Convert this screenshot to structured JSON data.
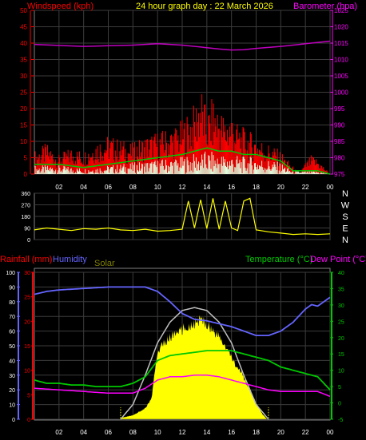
{
  "header": {
    "left_label": "Windspeed (kph)",
    "title": "24 hour graph day : 22 March 2026",
    "right_label": "Barometer (hpa)"
  },
  "colors": {
    "wind": "#ff0000",
    "gust": "#ff0000",
    "wind_avg": "#00c800",
    "wind_low": "#e0ffe0",
    "barometer": "#c000c0",
    "direction": "#ffff00",
    "humidity": "#6464ff",
    "solar": "#ffff00",
    "solar_max": "#c0c0c0",
    "temperature": "#00c800",
    "dewpoint": "#ff00ff",
    "rain": "#ff0000",
    "axis_red": "#ff0000",
    "axis_blue": "#6464ff",
    "axis_green": "#00c800",
    "axis_magenta": "#ff00ff"
  },
  "chart_data": [
    {
      "type": "line",
      "panel": "wind-barometer",
      "x_ticks": [
        "02",
        "04",
        "06",
        "08",
        "10",
        "12",
        "14",
        "16",
        "18",
        "20",
        "22",
        "00"
      ],
      "left_axis": {
        "label": "Windspeed (kph)",
        "ticks": [
          "0",
          "5",
          "10",
          "15",
          "20",
          "25",
          "30",
          "35",
          "40",
          "45",
          "50"
        ],
        "ylim": [
          0,
          50
        ]
      },
      "right_axis": {
        "label": "Barometer (hpa)",
        "ticks": [
          "975",
          "980",
          "985",
          "990",
          "995",
          "1000",
          "1005",
          "1010",
          "1015",
          "1020",
          "1025"
        ],
        "ylim": [
          975,
          1025
        ]
      },
      "series": [
        {
          "name": "Barometer",
          "x": [
            0,
            2,
            4,
            6,
            8,
            10,
            12,
            14,
            15,
            16,
            17,
            18,
            20,
            22,
            24
          ],
          "values": [
            1014.6,
            1014.3,
            1014.0,
            1014.2,
            1014.4,
            1014.8,
            1014.4,
            1013.6,
            1013.2,
            1012.9,
            1013.0,
            1013.4,
            1014.0,
            1014.8,
            1015.6
          ]
        },
        {
          "name": "Wind speed",
          "x": [
            0,
            1,
            2,
            3,
            4,
            5,
            6,
            7,
            8,
            9,
            10,
            11,
            12,
            12.5,
            13,
            13.5,
            14,
            14.5,
            15,
            15.5,
            16,
            16.5,
            17,
            18,
            19,
            20,
            21,
            21.5,
            22,
            22.5,
            23,
            24
          ],
          "values": [
            6,
            8,
            5,
            7,
            6,
            9,
            10,
            9,
            8,
            10,
            11,
            12,
            14,
            16,
            18,
            24,
            16,
            20,
            18,
            15,
            17,
            13,
            12,
            10,
            8,
            6,
            2,
            0,
            3,
            5,
            4,
            0
          ]
        },
        {
          "name": "Wind average",
          "x": [
            0,
            2,
            4,
            6,
            8,
            10,
            12,
            13,
            14,
            15,
            16,
            17,
            18,
            19,
            20,
            21,
            22,
            23,
            24
          ],
          "values": [
            3,
            3,
            2,
            3,
            4,
            5,
            6,
            7,
            8,
            7,
            7,
            6,
            6,
            5,
            4,
            1,
            1,
            1,
            0
          ]
        }
      ]
    },
    {
      "type": "line",
      "panel": "wind-direction",
      "x_ticks": [
        "02",
        "04",
        "06",
        "08",
        "10",
        "12",
        "14",
        "16",
        "18",
        "20",
        "22",
        "00"
      ],
      "left_axis": {
        "ticks": [
          "0",
          "90",
          "180",
          "270",
          "360"
        ],
        "ylim": [
          0,
          360
        ]
      },
      "right_axis": {
        "ticks": [
          "N",
          "E",
          "S",
          "W",
          "N"
        ]
      },
      "series": [
        {
          "name": "Direction",
          "x": [
            0,
            1,
            2,
            3,
            4,
            5,
            6,
            7,
            8,
            9,
            10,
            11,
            12,
            12.5,
            13,
            13.5,
            14,
            14.5,
            15,
            15.5,
            16,
            16.5,
            17,
            17.5,
            18,
            19,
            20,
            21,
            22,
            23,
            24
          ],
          "values": [
            75,
            90,
            80,
            70,
            85,
            80,
            90,
            75,
            70,
            80,
            65,
            70,
            80,
            300,
            90,
            310,
            85,
            320,
            80,
            300,
            90,
            70,
            300,
            320,
            75,
            60,
            50,
            40,
            45,
            40,
            45
          ]
        }
      ]
    },
    {
      "type": "line",
      "panel": "temp-humidity-rain-solar",
      "x_ticks": [
        "02",
        "04",
        "06",
        "08",
        "10",
        "12",
        "14",
        "16",
        "18",
        "20",
        "22",
        "00"
      ],
      "legend": [
        "Rainfall (mm)",
        "Humidity",
        "Solar",
        "Temperature (°C)",
        "Dew Point (°C)"
      ],
      "humidity_axis": {
        "ticks": [
          "0",
          "10",
          "20",
          "30",
          "40",
          "50",
          "60",
          "70",
          "80",
          "90",
          "100"
        ],
        "ylim": [
          0,
          100
        ]
      },
      "rain_axis": {
        "ticks": [
          "0",
          "5",
          "10",
          "15",
          "20",
          "25",
          "30"
        ],
        "ylim": [
          0,
          30
        ]
      },
      "temp_axis": {
        "ticks": [
          "-5",
          "0",
          "5",
          "10",
          "15",
          "20",
          "25",
          "30",
          "35",
          "40"
        ],
        "ylim": [
          -5,
          40
        ]
      },
      "series": [
        {
          "name": "Humidity",
          "x": [
            0,
            1,
            2,
            4,
            6,
            8,
            9,
            10,
            11,
            12,
            13,
            14,
            15,
            16,
            17,
            18,
            19,
            20,
            21,
            22,
            22.5,
            23,
            24
          ],
          "values": [
            85,
            87,
            88,
            89,
            90,
            90,
            90,
            87,
            80,
            72,
            68,
            67,
            65,
            63,
            60,
            57,
            57,
            60,
            66,
            75,
            78,
            77,
            83
          ]
        },
        {
          "name": "Temperature",
          "x": [
            0,
            1,
            2,
            3,
            4,
            5,
            6,
            7,
            8,
            9,
            10,
            11,
            12,
            13,
            14,
            15,
            16,
            17,
            18,
            19,
            20,
            21,
            22,
            23,
            24
          ],
          "values": [
            7,
            6,
            6,
            5.5,
            5.5,
            5,
            5,
            5,
            6,
            8,
            13,
            14.5,
            15,
            15.5,
            16,
            16,
            16,
            15,
            14,
            13,
            11,
            10,
            9,
            8,
            4
          ]
        },
        {
          "name": "Dew Point",
          "x": [
            0,
            2,
            4,
            6,
            8,
            9,
            10,
            11,
            12,
            13,
            14,
            15,
            16,
            17,
            18,
            19,
            20,
            21,
            22,
            23,
            24
          ],
          "values": [
            4.5,
            4,
            3.5,
            3,
            3,
            4.5,
            7,
            8,
            8,
            8.5,
            8.5,
            8,
            7,
            6,
            5,
            4,
            3.5,
            3.5,
            3.5,
            3.5,
            2
          ]
        },
        {
          "name": "Solar",
          "x": [
            6.9,
            7,
            8,
            9,
            9.5,
            10,
            11,
            12,
            12.5,
            13,
            13.5,
            14,
            15,
            16,
            17,
            18,
            18.5,
            18.9
          ],
          "values": [
            0,
            1,
            3,
            8,
            15,
            50,
            60,
            65,
            68,
            70,
            72,
            70,
            60,
            45,
            30,
            12,
            4,
            0
          ]
        },
        {
          "name": "Solar max",
          "x": [
            7,
            8,
            9,
            10,
            11,
            12,
            13,
            14,
            15,
            16,
            17,
            18,
            19
          ],
          "values": [
            0,
            10,
            30,
            52,
            66,
            74,
            76,
            74,
            66,
            52,
            30,
            10,
            0
          ]
        }
      ]
    }
  ]
}
